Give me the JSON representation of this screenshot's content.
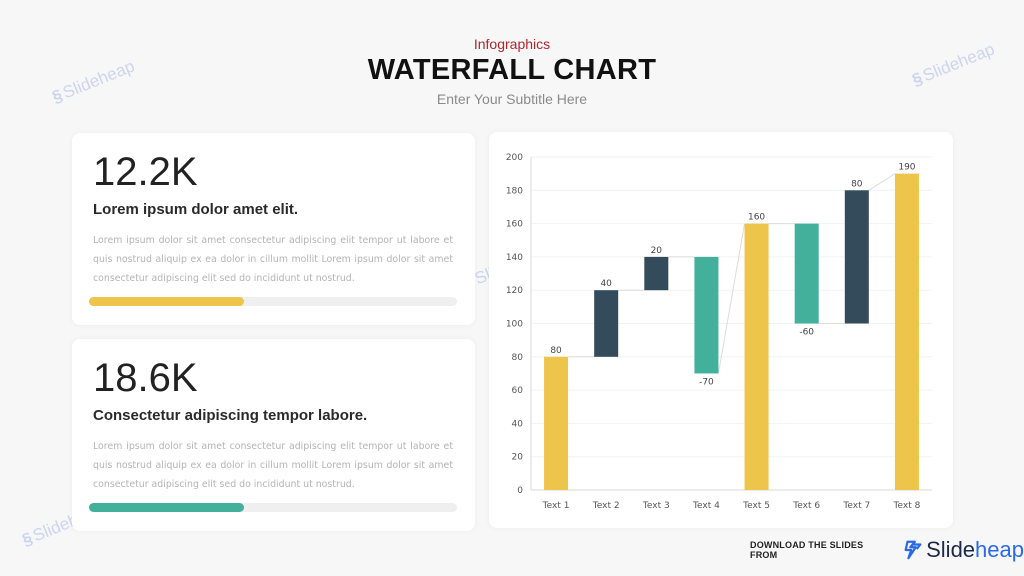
{
  "header": {
    "eyebrow": "Infographics",
    "title": "WATERFALL CHART",
    "subtitle": "Enter Your Subtitle Here"
  },
  "cards": [
    {
      "value": "12.2K",
      "heading": "Lorem ipsum dolor amet elit.",
      "body": "Lorem ipsum dolor sit amet consectetur adipiscing elit tempor ut labore et quis nostrud aliquip ex ea dolor in cillum mollit Lorem ipsum dolor sit amet consectetur adipiscing elit sed do incididunt ut nostrud.",
      "progress_percent": 42,
      "color": "#edc54a"
    },
    {
      "value": "18.6K",
      "heading": "Consectetur adipiscing tempor labore.",
      "body": "Lorem ipsum dolor sit amet consectetur adipiscing elit tempor ut labore et quis nostrud aliquip ex ea dolor in cillum mollit Lorem ipsum dolor sit amet consectetur adipiscing elit sed do incididunt ut nostrud.",
      "progress_percent": 42,
      "color": "#43b09b"
    }
  ],
  "colors": {
    "total": "#edc54a",
    "increase": "#334b5a",
    "decrease": "#43b09b",
    "accent_red": "#b0262b"
  },
  "chart_data": {
    "type": "bar",
    "subtype": "waterfall",
    "title": "",
    "xlabel": "",
    "ylabel": "",
    "ylim": [
      0,
      200
    ],
    "yticks": [
      0,
      20,
      40,
      60,
      80,
      100,
      120,
      140,
      160,
      180,
      200
    ],
    "grid": true,
    "legend": null,
    "categories": [
      "Text 1",
      "Text 2",
      "Text 3",
      "Text 4",
      "Text 5",
      "Text 6",
      "Text 7",
      "Text 8"
    ],
    "values": [
      80,
      40,
      20,
      -70,
      160,
      -60,
      80,
      190
    ],
    "labels": [
      "80",
      "40",
      "20",
      "-70",
      "160",
      "-60",
      "80",
      "190"
    ],
    "bars": [
      {
        "category": "Text 1",
        "kind": "total",
        "start": 0,
        "end": 80,
        "label": "80"
      },
      {
        "category": "Text 2",
        "kind": "increase",
        "start": 80,
        "end": 120,
        "label": "40"
      },
      {
        "category": "Text 3",
        "kind": "increase",
        "start": 120,
        "end": 140,
        "label": "20"
      },
      {
        "category": "Text 4",
        "kind": "decrease",
        "start": 140,
        "end": 70,
        "label": "-70"
      },
      {
        "category": "Text 5",
        "kind": "total",
        "start": 0,
        "end": 160,
        "label": "160"
      },
      {
        "category": "Text 6",
        "kind": "decrease",
        "start": 160,
        "end": 100,
        "label": "-60"
      },
      {
        "category": "Text 7",
        "kind": "increase",
        "start": 100,
        "end": 180,
        "label": "80"
      },
      {
        "category": "Text 8",
        "kind": "total",
        "start": 0,
        "end": 190,
        "label": "190"
      }
    ]
  },
  "watermarks": [
    "Slideheap",
    "Slideheap",
    "Slideheap",
    "Slideheap"
  ],
  "footer": {
    "text": "DOWNLOAD THE SLIDES FROM",
    "brand_part1": "Slide",
    "brand_part2": "heap"
  }
}
